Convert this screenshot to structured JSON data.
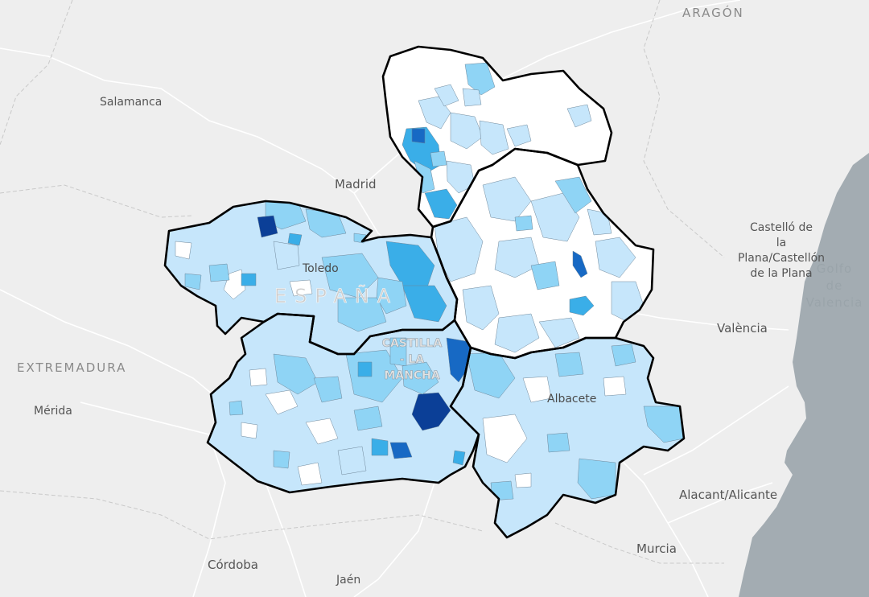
{
  "map": {
    "colors": {
      "land": "#eeeeee",
      "sea": "#a3acb2",
      "none": "#ffffff",
      "c1": "#c6e6fb",
      "c2": "#8fd4f5",
      "c3": "#3aaee8",
      "c4": "#1769c4",
      "c5": "#0b3f97",
      "border": "#000000"
    },
    "labels": {
      "aragon": "ARAGÓN",
      "salamanca": "Salamanca",
      "madrid": "Madrid",
      "toledo": "Toledo",
      "espana": "ESPAÑA",
      "castello": [
        "Castelló de",
        "la",
        "Plana/Castellón",
        "de la Plana"
      ],
      "golfo": [
        "Golfo",
        "de",
        "Valencia"
      ],
      "valencia": "València",
      "extremadura": "EXTREMADURA",
      "merida": "Mérida",
      "clm": [
        "CASTILLA",
        "- LA",
        "MANCHA"
      ],
      "albacete": "Albacete",
      "alicante": "Alacant/Alicante",
      "murcia": "Murcia",
      "cordoba": "Córdoba",
      "jaen": "Jaén"
    }
  }
}
